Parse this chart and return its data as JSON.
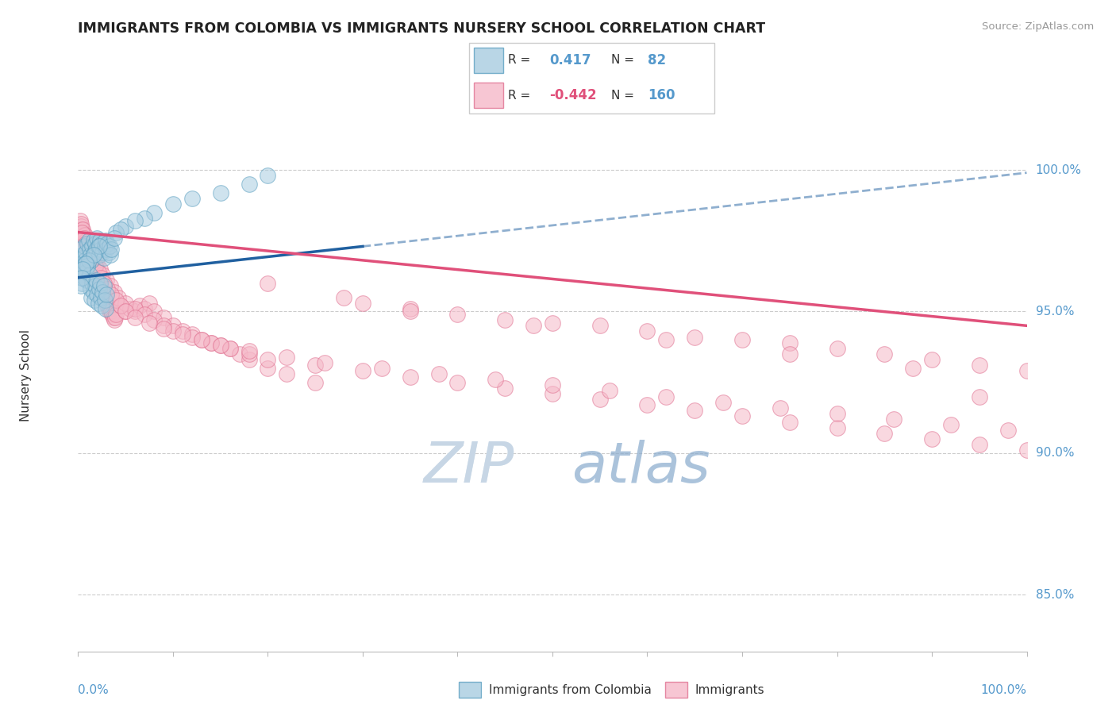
{
  "title": "IMMIGRANTS FROM COLOMBIA VS IMMIGRANTS NURSERY SCHOOL CORRELATION CHART",
  "source": "Source: ZipAtlas.com",
  "ylabel": "Nursery School",
  "legend_blue_r": "0.417",
  "legend_blue_n": "82",
  "legend_pink_r": "-0.442",
  "legend_pink_n": "160",
  "blue_scatter_color": "#a8cce0",
  "blue_edge_color": "#5a9fc0",
  "pink_scatter_color": "#f5b8c8",
  "pink_edge_color": "#e07090",
  "blue_line_color": "#2060a0",
  "pink_line_color": "#e0507a",
  "axis_label_color": "#5599cc",
  "watermark_zip_color": "#d0dde8",
  "watermark_atlas_color": "#88aacc",
  "y_ticks": [
    85.0,
    90.0,
    95.0,
    100.0
  ],
  "x_range": [
    0.0,
    100.0
  ],
  "y_range": [
    83.0,
    102.5
  ],
  "blue_line_x0": 0.0,
  "blue_line_y0": 96.2,
  "blue_line_x1": 30.0,
  "blue_line_y1": 97.3,
  "blue_dash_x0": 30.0,
  "blue_dash_y0": 97.3,
  "blue_dash_x1": 100.0,
  "blue_dash_y1": 99.9,
  "pink_line_x0": 0.0,
  "pink_line_y0": 97.8,
  "pink_line_x1": 100.0,
  "pink_line_y1": 94.5,
  "blue_scatter_x": [
    0.2,
    0.3,
    0.4,
    0.5,
    0.5,
    0.6,
    0.7,
    0.8,
    0.9,
    1.0,
    1.0,
    1.1,
    1.2,
    1.3,
    1.4,
    1.5,
    1.6,
    1.7,
    1.8,
    1.9,
    2.0,
    2.1,
    2.2,
    2.3,
    2.4,
    2.5,
    2.6,
    2.7,
    2.8,
    2.9,
    3.0,
    3.1,
    3.2,
    3.3,
    3.4,
    3.5,
    0.3,
    0.4,
    0.5,
    0.6,
    0.7,
    0.8,
    0.9,
    1.0,
    1.1,
    1.2,
    1.3,
    1.4,
    1.5,
    1.6,
    1.7,
    1.8,
    1.9,
    2.0,
    2.1,
    2.2,
    2.3,
    2.4,
    2.5,
    2.6,
    2.7,
    2.8,
    2.9,
    3.0,
    5.0,
    8.0,
    12.0,
    15.0,
    18.0,
    20.0,
    10.0,
    7.0,
    4.0,
    6.0,
    4.5,
    3.8,
    2.2,
    1.6,
    0.8,
    0.5,
    0.4,
    0.3
  ],
  "blue_scatter_y": [
    96.8,
    97.2,
    96.5,
    97.0,
    96.9,
    97.3,
    96.8,
    97.1,
    96.7,
    97.4,
    96.6,
    97.5,
    97.2,
    97.0,
    96.8,
    97.3,
    97.5,
    97.1,
    97.4,
    97.2,
    97.6,
    97.3,
    97.0,
    97.5,
    97.2,
    97.4,
    97.1,
    96.9,
    97.3,
    97.5,
    97.2,
    97.4,
    97.1,
    97.3,
    97.0,
    97.2,
    96.3,
    96.0,
    96.5,
    96.2,
    96.7,
    96.4,
    96.1,
    96.6,
    96.8,
    96.3,
    95.8,
    95.5,
    96.0,
    95.7,
    95.4,
    95.9,
    96.1,
    95.6,
    95.3,
    95.8,
    96.0,
    95.5,
    95.2,
    95.7,
    95.9,
    95.4,
    95.1,
    95.6,
    98.0,
    98.5,
    99.0,
    99.2,
    99.5,
    99.8,
    98.8,
    98.3,
    97.8,
    98.2,
    97.9,
    97.6,
    97.3,
    97.0,
    96.7,
    96.5,
    96.2,
    95.9
  ],
  "pink_scatter_x": [
    0.2,
    0.3,
    0.4,
    0.5,
    0.6,
    0.7,
    0.8,
    0.9,
    1.0,
    1.1,
    1.2,
    1.3,
    1.4,
    1.5,
    1.6,
    1.7,
    1.8,
    1.9,
    2.0,
    2.1,
    2.2,
    2.3,
    2.4,
    2.5,
    2.6,
    2.7,
    2.8,
    2.9,
    3.0,
    3.1,
    3.2,
    3.3,
    3.4,
    3.5,
    3.6,
    3.7,
    3.8,
    3.9,
    4.0,
    4.5,
    5.0,
    5.5,
    6.0,
    6.5,
    7.0,
    7.5,
    8.0,
    9.0,
    10.0,
    11.0,
    12.0,
    13.0,
    14.0,
    15.0,
    16.0,
    17.0,
    18.0,
    20.0,
    22.0,
    25.0,
    28.0,
    30.0,
    35.0,
    40.0,
    45.0,
    50.0,
    55.0,
    60.0,
    65.0,
    70.0,
    75.0,
    80.0,
    85.0,
    90.0,
    95.0,
    100.0,
    0.3,
    0.5,
    0.7,
    0.9,
    1.1,
    1.4,
    1.7,
    2.0,
    2.3,
    2.6,
    3.0,
    3.4,
    3.8,
    4.2,
    5.0,
    6.0,
    7.0,
    8.0,
    9.0,
    10.0,
    12.0,
    14.0,
    16.0,
    18.0,
    20.0,
    25.0,
    30.0,
    35.0,
    40.0,
    45.0,
    50.0,
    55.0,
    60.0,
    65.0,
    70.0,
    75.0,
    80.0,
    85.0,
    90.0,
    95.0,
    100.0,
    0.4,
    0.6,
    0.8,
    1.0,
    1.2,
    1.5,
    1.8,
    2.1,
    2.4,
    2.7,
    3.1,
    3.5,
    4.0,
    4.5,
    5.0,
    6.0,
    7.5,
    9.0,
    11.0,
    13.0,
    15.0,
    18.0,
    22.0,
    26.0,
    32.0,
    38.0,
    44.0,
    50.0,
    56.0,
    62.0,
    68.0,
    74.0,
    80.0,
    86.0,
    92.0,
    98.0,
    20.0,
    35.0,
    48.0,
    62.0,
    75.0,
    88.0,
    95.0
  ],
  "pink_scatter_y": [
    98.2,
    98.0,
    97.9,
    97.8,
    97.7,
    97.6,
    97.5,
    97.4,
    97.3,
    97.2,
    97.1,
    97.0,
    96.9,
    96.8,
    96.7,
    96.6,
    96.5,
    96.4,
    96.3,
    96.2,
    96.1,
    96.0,
    95.9,
    95.8,
    95.7,
    95.6,
    95.5,
    95.4,
    95.3,
    95.2,
    95.1,
    95.0,
    95.1,
    95.0,
    94.9,
    94.8,
    94.7,
    94.8,
    94.9,
    95.2,
    95.0,
    95.1,
    95.0,
    95.2,
    95.1,
    95.3,
    95.0,
    94.8,
    94.5,
    94.3,
    94.2,
    94.0,
    93.9,
    93.8,
    93.7,
    93.5,
    93.3,
    93.0,
    92.8,
    92.5,
    95.5,
    95.3,
    95.1,
    94.9,
    94.7,
    94.6,
    94.5,
    94.3,
    94.1,
    94.0,
    93.9,
    93.7,
    93.5,
    93.3,
    93.1,
    92.9,
    98.1,
    97.9,
    97.7,
    97.5,
    97.3,
    97.1,
    96.9,
    96.7,
    96.5,
    96.3,
    96.1,
    95.9,
    95.7,
    95.5,
    95.3,
    95.1,
    94.9,
    94.7,
    94.5,
    94.3,
    94.1,
    93.9,
    93.7,
    93.5,
    93.3,
    93.1,
    92.9,
    92.7,
    92.5,
    92.3,
    92.1,
    91.9,
    91.7,
    91.5,
    91.3,
    91.1,
    90.9,
    90.7,
    90.5,
    90.3,
    90.1,
    97.8,
    97.6,
    97.4,
    97.2,
    97.0,
    96.8,
    96.6,
    96.4,
    96.2,
    96.0,
    95.8,
    95.6,
    95.4,
    95.2,
    95.0,
    94.8,
    94.6,
    94.4,
    94.2,
    94.0,
    93.8,
    93.6,
    93.4,
    93.2,
    93.0,
    92.8,
    92.6,
    92.4,
    92.2,
    92.0,
    91.8,
    91.6,
    91.4,
    91.2,
    91.0,
    90.8,
    96.0,
    95.0,
    94.5,
    94.0,
    93.5,
    93.0,
    92.0
  ]
}
